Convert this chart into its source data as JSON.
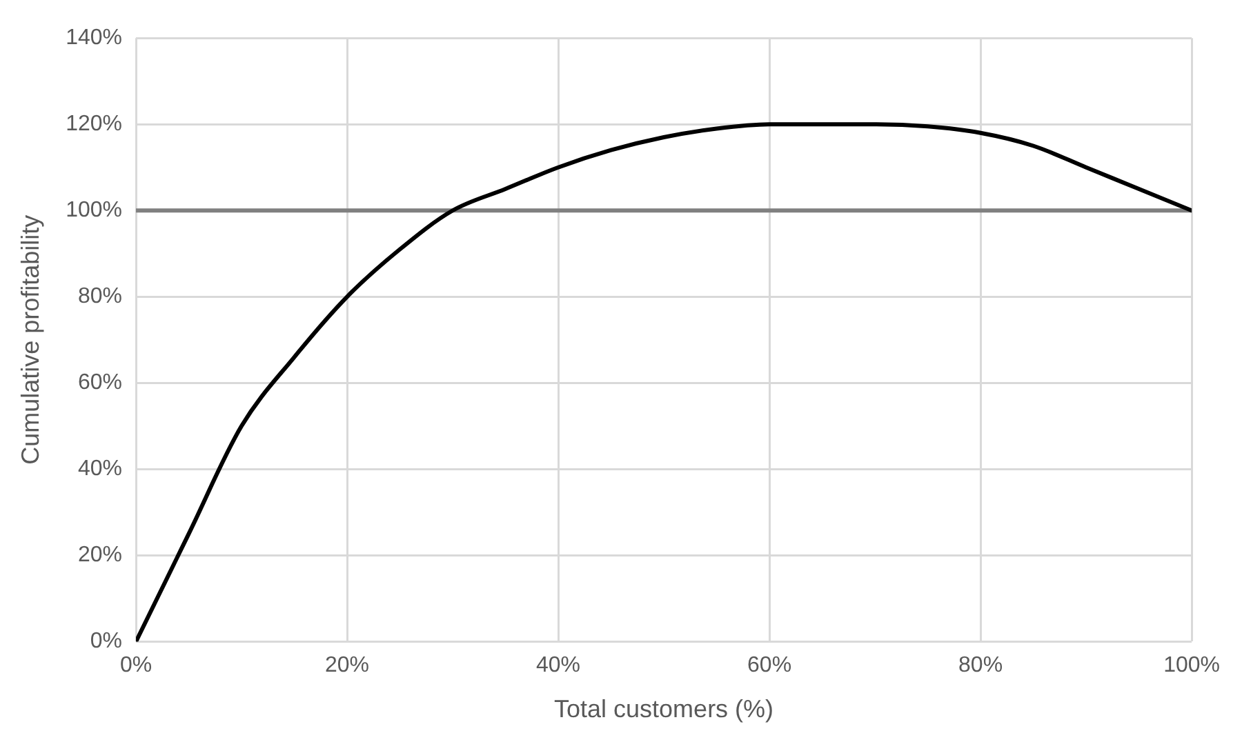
{
  "chart_data": {
    "type": "line",
    "xlabel": "Total customers (%)",
    "ylabel": "Cumulative profitability",
    "x": [
      0,
      5,
      10,
      15,
      20,
      25,
      30,
      35,
      40,
      45,
      50,
      55,
      60,
      65,
      70,
      75,
      80,
      85,
      90,
      95,
      100
    ],
    "series": [
      {
        "color": "#000000",
        "values": [
          0,
          25,
          50,
          66,
          80,
          91,
          100,
          105,
          110,
          114,
          117,
          119,
          120,
          120,
          120,
          119.5,
          118,
          115,
          110,
          105,
          100
        ]
      }
    ],
    "xlim": [
      0,
      100
    ],
    "ylim": [
      0,
      140
    ],
    "xticks": [
      {
        "value": 0,
        "label": "0%"
      },
      {
        "value": 20,
        "label": "20%"
      },
      {
        "value": 40,
        "label": "40%"
      },
      {
        "value": 60,
        "label": "60%"
      },
      {
        "value": 80,
        "label": "80%"
      },
      {
        "value": 100,
        "label": "100%"
      }
    ],
    "yticks": [
      {
        "value": 0,
        "label": "0%"
      },
      {
        "value": 20,
        "label": "20%"
      },
      {
        "value": 40,
        "label": "40%"
      },
      {
        "value": 60,
        "label": "60%"
      },
      {
        "value": 80,
        "label": "80%"
      },
      {
        "value": 100,
        "label": "100%"
      },
      {
        "value": 120,
        "label": "120%"
      },
      {
        "value": 140,
        "label": "140%"
      }
    ],
    "ref_lines": [
      {
        "axis": "y",
        "value": 100,
        "color": "#808080"
      }
    ],
    "grid": true,
    "legend": false,
    "marker": "none",
    "line_style": "solid"
  }
}
